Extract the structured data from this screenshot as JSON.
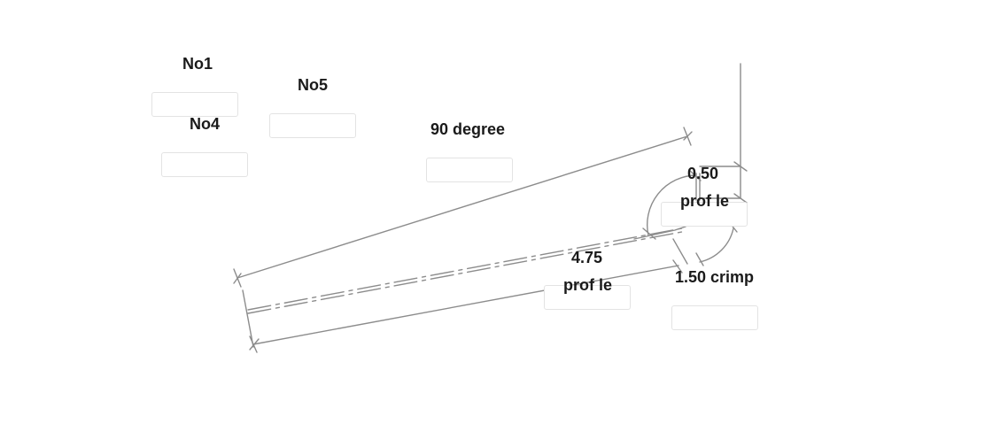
{
  "labels": {
    "no1": "No1",
    "no4": "No4",
    "no5": "No5",
    "angle": "90 degree",
    "dim_top": "0.50",
    "profile_top": "prof le",
    "dim_main": "4.75",
    "profile_main": "prof le",
    "crimp": "1.50 crimp"
  },
  "colors": {
    "line": "#8c8c8c",
    "text": "#1a1a1a",
    "field_border": "#e3e3e3"
  }
}
